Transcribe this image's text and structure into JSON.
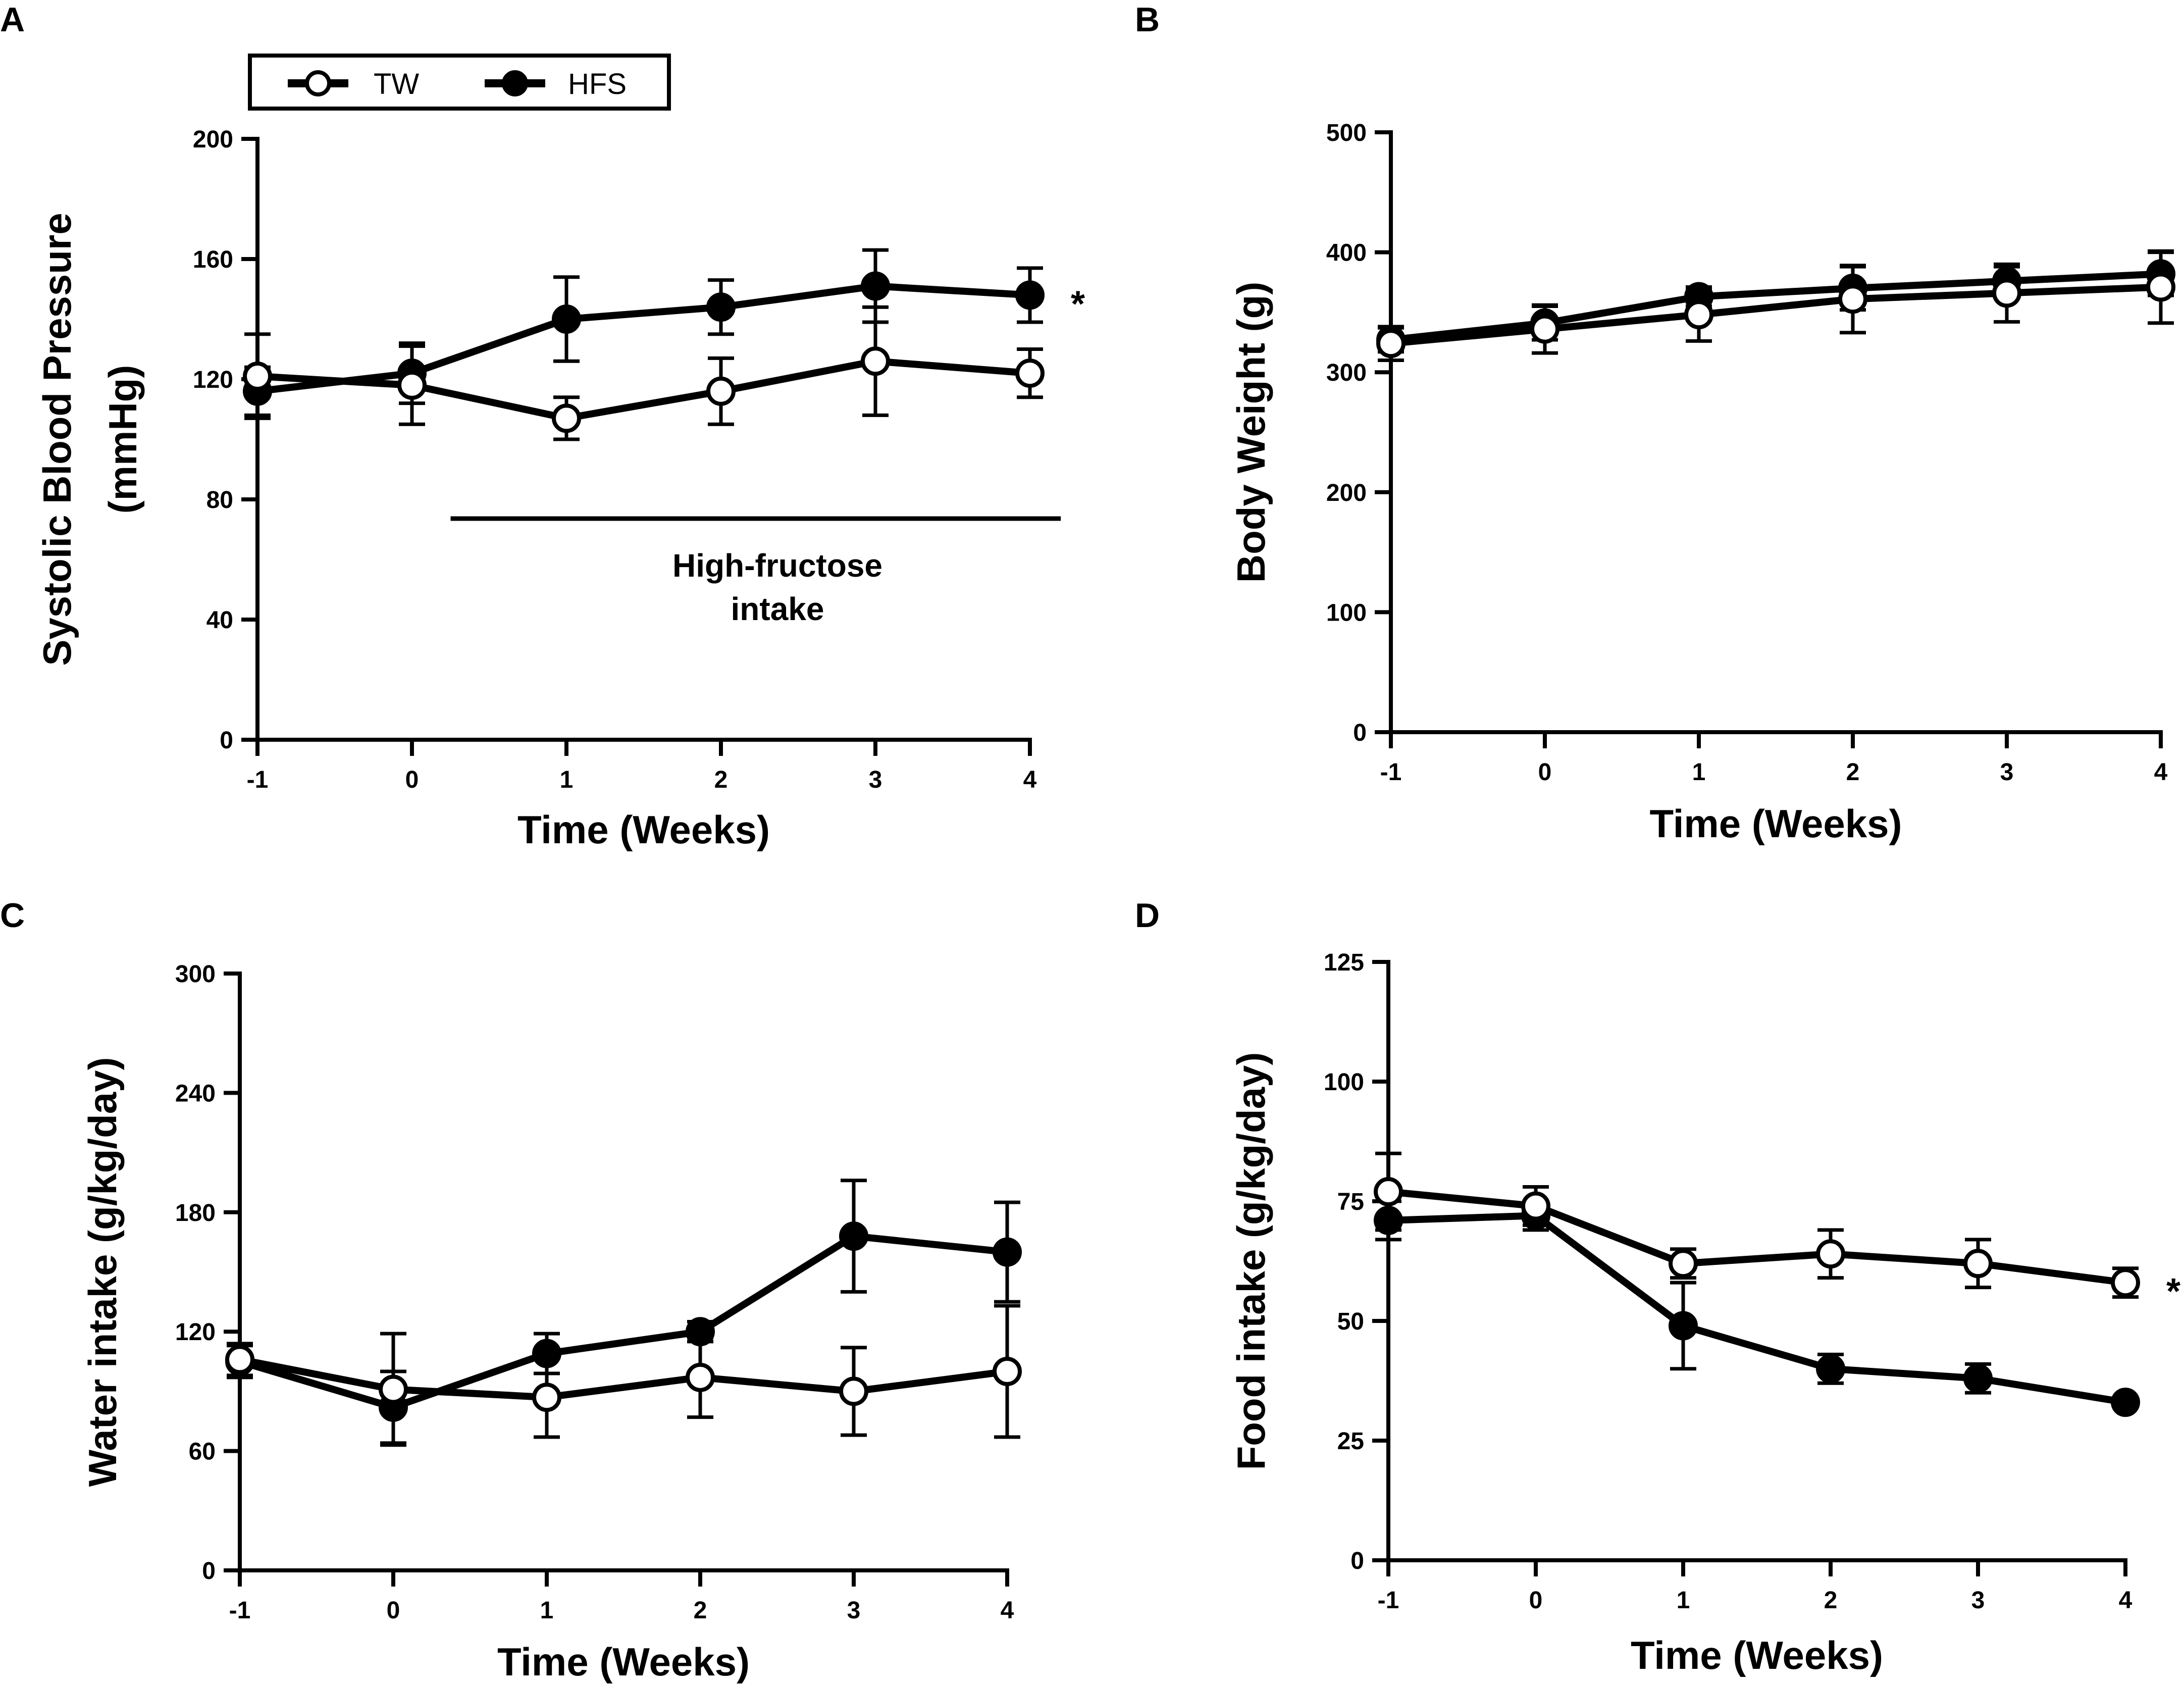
{
  "legend": {
    "entries": [
      {
        "name": "TW",
        "marker": "open-circle"
      },
      {
        "name": "HFS",
        "marker": "filled-circle"
      }
    ]
  },
  "chart_data": [
    {
      "panel": "A",
      "type": "line",
      "title": "",
      "xlabel": "Time (Weeks)",
      "ylabel": [
        "Systolic Blood Pressure",
        "(mmHg)"
      ],
      "x": [
        -1,
        0,
        1,
        2,
        3,
        4
      ],
      "x_ticks": [
        "-1",
        "0",
        "1",
        "2",
        "3",
        "4"
      ],
      "xlim": [
        -1,
        4
      ],
      "ylim": [
        0,
        200
      ],
      "y_ticks": [
        "0",
        "40",
        "80",
        "120",
        "160",
        "200"
      ],
      "series": [
        {
          "name": "TW",
          "values": [
            121,
            118,
            107,
            116,
            126,
            122
          ],
          "error": [
            14,
            13,
            7,
            11,
            18,
            8
          ]
        },
        {
          "name": "HFS",
          "values": [
            116,
            122,
            140,
            144,
            151,
            148
          ],
          "error": [
            8,
            10,
            14,
            9,
            12,
            9
          ]
        }
      ],
      "significance": "*",
      "annotation": {
        "lines": [
          "High-fructose",
          "intake"
        ],
        "bar_from": 0.25,
        "bar_to": 4.2
      }
    },
    {
      "panel": "B",
      "type": "line",
      "title": "",
      "xlabel": "Time (Weeks)",
      "ylabel": [
        "Body Weight (g)"
      ],
      "x": [
        -1,
        0,
        1,
        2,
        3,
        4
      ],
      "x_ticks": [
        "-1",
        "0",
        "1",
        "2",
        "3",
        "4"
      ],
      "xlim": [
        -1,
        4
      ],
      "ylim": [
        0,
        500
      ],
      "y_ticks": [
        "0",
        "100",
        "200",
        "300",
        "400",
        "500"
      ],
      "series": [
        {
          "name": "TW",
          "values": [
            324,
            336,
            348,
            361,
            366,
            371
          ],
          "error": [
            14,
            20,
            22,
            28,
            24,
            30
          ]
        },
        {
          "name": "HFS",
          "values": [
            327,
            341,
            363,
            370,
            376,
            382
          ],
          "error": [
            10,
            14,
            8,
            18,
            12,
            18
          ]
        }
      ]
    },
    {
      "panel": "C",
      "type": "line",
      "title": "",
      "xlabel": "Time (Weeks)",
      "ylabel": [
        "Water intake (g/kg/day)"
      ],
      "x": [
        -1,
        0,
        1,
        2,
        3,
        4
      ],
      "x_ticks": [
        "-1",
        "0",
        "1",
        "2",
        "3",
        "4"
      ],
      "xlim": [
        -1,
        4
      ],
      "ylim": [
        0,
        300
      ],
      "y_ticks": [
        "0",
        "60",
        "120",
        "180",
        "240",
        "300"
      ],
      "series": [
        {
          "name": "TW",
          "values": [
            106,
            91,
            87,
            97,
            90,
            100
          ],
          "error": [
            8,
            28,
            20,
            20,
            22,
            33
          ]
        },
        {
          "name": "HFS",
          "values": [
            105,
            82,
            109,
            120,
            168,
            160
          ],
          "error": [
            8,
            18,
            10,
            5,
            28,
            25
          ]
        }
      ]
    },
    {
      "panel": "D",
      "type": "line",
      "title": "",
      "xlabel": "Time (Weeks)",
      "ylabel": [
        "Food intake (g/kg/day)"
      ],
      "x": [
        -1,
        0,
        1,
        2,
        3,
        4
      ],
      "x_ticks": [
        "-1",
        "0",
        "1",
        "2",
        "3",
        "4"
      ],
      "xlim": [
        -1,
        4
      ],
      "ylim": [
        0,
        125
      ],
      "y_ticks": [
        "0",
        "25",
        "50",
        "75",
        "100",
        "125"
      ],
      "series": [
        {
          "name": "TW",
          "values": [
            77,
            74,
            62,
            64,
            62,
            58
          ],
          "error": [
            8,
            4,
            3,
            5,
            5,
            3
          ]
        },
        {
          "name": "HFS",
          "values": [
            71,
            72,
            49,
            40,
            38,
            33
          ],
          "error": [
            4,
            3,
            9,
            3,
            3,
            1
          ]
        }
      ],
      "significance": "*"
    }
  ]
}
